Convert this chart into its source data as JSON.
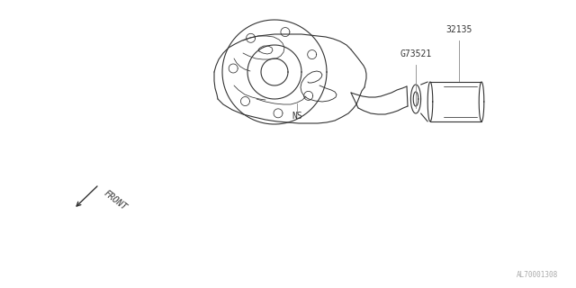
{
  "bg_color": "#ffffff",
  "line_color": "#333333",
  "text_color": "#333333",
  "diagram_id": "AL70001308",
  "label_32135": "32135",
  "label_G73521": "G73521",
  "label_NS": "NS",
  "label_FRONT": "FRONT",
  "lw": 0.8
}
